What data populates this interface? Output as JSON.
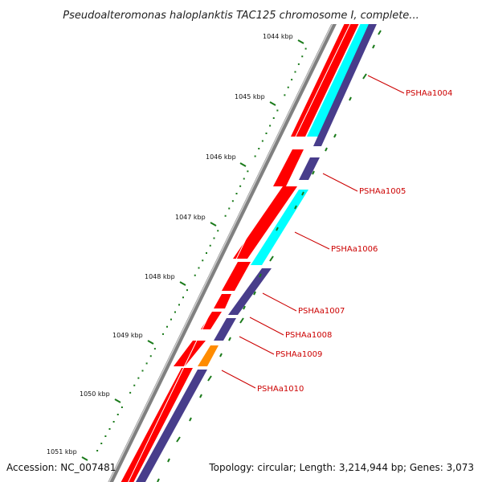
{
  "title": "Pseudoalteromonas haloplanktis TAC125 chromosome I, complete...",
  "accession": "Accession: NC_007481",
  "summary": "Topology: circular; Length: 3,214,944 bp; Genes: 3,073",
  "ruler": [
    "1044 kbp",
    "1045 kbp",
    "1046 kbp",
    "1047 kbp",
    "1048 kbp",
    "1049 kbp",
    "1050 kbp",
    "1051 kbp"
  ],
  "genes": [
    "PSHAa1004",
    "PSHAa1005",
    "PSHAa1006",
    "PSHAa1007",
    "PSHAa1008",
    "PSHAa1009",
    "PSHAa1010"
  ],
  "colors": {
    "backbone": "#808080",
    "cds": "#ff0000",
    "trna": "#00ffff",
    "orf": "#483d8b",
    "orange": "#ff8c00",
    "tick": "#1a7a1a",
    "label": "#cc0000"
  }
}
